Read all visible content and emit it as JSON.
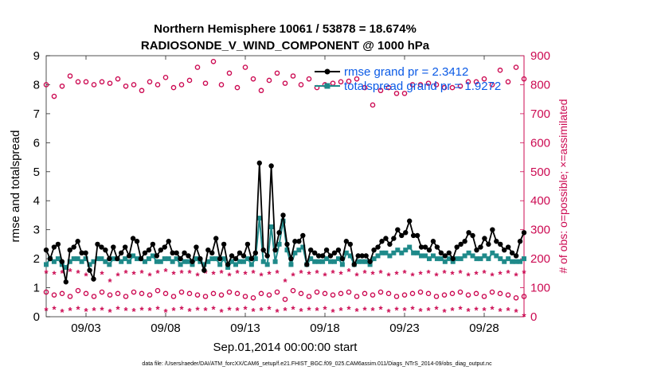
{
  "chart_data": {
    "type": "line",
    "title_line1": "Northern Hemisphere 10061 / 53878 = 18.674%",
    "title_line2": "RADIOSONDE_V_WIND_COMPONENT @ 1000 hPa",
    "xlabel": "Sep.01,2014 00:00:00 start",
    "ylabel": "rmse and totalspread",
    "y2label": "# of obs: o=possible; ×=assimilated",
    "footer": "data file: /Users/raeder/DAI/ATM_forcXX/CAM6_setup/f.e21.FHIST_BGC.f09_025.CAM6assim.011/Diags_NTrS_2014-09/obs_diag_output.nc",
    "xlim": [
      1.0,
      31.0
    ],
    "ylim": [
      0,
      9
    ],
    "y2lim": [
      0,
      900
    ],
    "yticks": [
      "0",
      "1",
      "2",
      "3",
      "4",
      "5",
      "6",
      "7",
      "8",
      "9"
    ],
    "y2ticks": [
      "0",
      "100",
      "200",
      "300",
      "400",
      "500",
      "600",
      "700",
      "800",
      "900"
    ],
    "xticks": [
      {
        "label": "09/03",
        "day": 3.5
      },
      {
        "label": "09/08",
        "day": 8.5
      },
      {
        "label": "09/13",
        "day": 13.5
      },
      {
        "label": "09/18",
        "day": 18.5
      },
      {
        "label": "09/23",
        "day": 23.5
      },
      {
        "label": "09/28",
        "day": 28.5
      }
    ],
    "legend": [
      {
        "label": "rmse grand pr = 2.3412",
        "color": "#000000"
      },
      {
        "label": "totalspread grand pr = 1.9272",
        "color": "#1f8a8a"
      }
    ],
    "colors": {
      "rmse": "#000000",
      "spread": "#1f8a8a",
      "obs": "#cc0a52"
    },
    "series": [
      {
        "name": "rmse",
        "values": [
          2.3,
          2.0,
          2.4,
          2.5,
          1.9,
          1.2,
          2.3,
          2.4,
          2.6,
          2.2,
          2.2,
          1.6,
          1.3,
          2.5,
          2.4,
          2.3,
          2.0,
          2.4,
          2.0,
          2.2,
          2.4,
          2.1,
          2.7,
          2.6,
          2.0,
          2.2,
          2.3,
          2.5,
          2.1,
          2.3,
          2.4,
          2.6,
          2.2,
          2.2,
          2.0,
          2.2,
          2.1,
          1.9,
          2.4,
          2.0,
          1.6,
          2.3,
          2.2,
          2.7,
          2.0,
          2.5,
          1.8,
          2.1,
          2.0,
          2.2,
          2.1,
          2.5,
          2.0,
          2.2,
          5.3,
          2.3,
          2.1,
          5.2,
          2.3,
          2.9,
          3.5,
          2.5,
          2.0,
          2.6,
          2.6,
          2.8,
          1.8,
          2.3,
          2.2,
          2.1,
          2.1,
          2.3,
          2.1,
          2.2,
          2.3,
          2.0,
          2.6,
          2.5,
          1.8,
          2.1,
          2.1,
          2.1,
          1.9,
          2.3,
          2.4,
          2.6,
          2.7,
          2.5,
          2.7,
          3.0,
          2.8,
          2.9,
          3.3,
          2.8,
          2.8,
          2.4,
          2.4,
          2.3,
          2.6,
          2.4,
          2.2,
          2.1,
          2.2,
          2.0,
          2.4,
          2.5,
          2.6,
          2.9,
          2.8,
          2.3,
          2.4,
          2.7,
          2.5,
          3.0,
          2.6,
          2.5,
          2.3,
          2.4,
          2.2,
          2.1,
          2.6,
          2.9
        ]
      },
      {
        "name": "totalspread",
        "values": [
          1.8,
          2.0,
          1.9,
          2.0,
          1.8,
          1.7,
          1.9,
          2.0,
          2.0,
          1.9,
          2.0,
          1.8,
          1.9,
          2.0,
          2.0,
          1.9,
          1.8,
          2.0,
          2.0,
          1.9,
          2.0,
          1.9,
          2.1,
          2.0,
          2.0,
          1.9,
          2.0,
          2.1,
          1.9,
          1.9,
          2.0,
          2.0,
          1.9,
          2.0,
          1.8,
          1.9,
          1.9,
          1.8,
          2.0,
          1.9,
          1.8,
          1.9,
          2.0,
          2.0,
          1.8,
          2.0,
          1.7,
          1.9,
          1.8,
          1.9,
          1.9,
          2.0,
          1.8,
          2.0,
          3.4,
          1.9,
          1.8,
          3.1,
          1.9,
          2.5,
          3.3,
          2.3,
          1.8,
          2.2,
          2.3,
          2.4,
          1.8,
          2.0,
          1.9,
          1.9,
          1.9,
          2.0,
          1.9,
          1.9,
          2.0,
          1.8,
          2.2,
          2.1,
          1.8,
          1.9,
          1.9,
          1.9,
          1.8,
          2.0,
          2.1,
          2.2,
          2.2,
          2.1,
          2.2,
          2.3,
          2.2,
          2.3,
          2.4,
          2.2,
          2.2,
          2.1,
          2.1,
          2.0,
          2.1,
          2.0,
          2.0,
          1.9,
          2.0,
          1.9,
          2.0,
          2.0,
          2.1,
          2.2,
          2.1,
          2.0,
          2.0,
          2.1,
          2.0,
          2.2,
          2.1,
          2.0,
          1.9,
          2.0,
          1.9,
          1.9,
          1.9,
          2.0
        ]
      },
      {
        "name": "obs_possible_00z",
        "marker": "o",
        "x": [
          1,
          2,
          3,
          4,
          5,
          6,
          7,
          8,
          9,
          10,
          11,
          12,
          13,
          14,
          15,
          16,
          17,
          18,
          19,
          20,
          21,
          22,
          23,
          24,
          25,
          26,
          27,
          28,
          29,
          30,
          31
        ],
        "values": [
          800,
          795,
          810,
          800,
          805,
          795,
          780,
          800,
          790,
          815,
          805,
          800,
          790,
          820,
          815,
          805,
          800,
          790,
          805,
          812,
          790,
          780,
          770,
          800,
          805,
          790,
          795,
          810,
          800,
          810,
          820
        ]
      },
      {
        "name": "obs_possible_12z",
        "marker": "o",
        "x": [
          1.5,
          2.5,
          3.5,
          4.5,
          5.5,
          6.5,
          7.5,
          8.5,
          9.5,
          10.5,
          11.5,
          12.5,
          13.5,
          14.5,
          15.5,
          16.5,
          17.5,
          18.5,
          19.5,
          20.5,
          21.5,
          22.5,
          23.5,
          24.5,
          25.5,
          26.5,
          27.5,
          28.5,
          29.5,
          30.5
        ],
        "values": [
          760,
          830,
          810,
          810,
          820,
          800,
          810,
          825,
          800,
          860,
          880,
          840,
          860,
          780,
          840,
          830,
          820,
          800,
          810,
          820,
          730,
          790,
          770,
          800,
          800,
          790,
          810,
          820,
          850,
          860
        ]
      },
      {
        "name": "obs_possible_06z_18z",
        "marker": "o",
        "x": [
          1.0,
          1.5,
          2.0,
          2.5,
          3.0,
          3.5,
          4.0,
          4.5,
          5.0,
          5.5,
          6.0,
          6.5,
          7.0,
          7.5,
          8.0,
          8.5,
          9.0,
          9.5,
          10.0,
          10.5,
          11.0,
          11.5,
          12.0,
          12.5,
          13.0,
          13.5,
          14.0,
          14.5,
          15.0,
          15.5,
          16.0,
          16.5,
          17.0,
          17.5,
          18.0,
          18.5,
          19.0,
          19.5,
          20.0,
          20.5,
          21.0,
          21.5,
          22.0,
          22.5,
          23.0,
          23.5,
          24.0,
          24.5,
          25.0,
          25.5,
          26.0,
          26.5,
          27.0,
          27.5,
          28.0,
          28.5,
          29.0,
          29.5,
          30.0,
          30.5,
          31.0
        ],
        "values": [
          85,
          75,
          80,
          70,
          90,
          80,
          70,
          85,
          75,
          80,
          70,
          85,
          80,
          75,
          90,
          80,
          70,
          85,
          80,
          75,
          70,
          80,
          75,
          85,
          80,
          70,
          65,
          80,
          75,
          85,
          60,
          90,
          80,
          70,
          85,
          80,
          75,
          80,
          85,
          70,
          80,
          75,
          85,
          80,
          70,
          75,
          80,
          85,
          80,
          70,
          75,
          80,
          85,
          75,
          80,
          70,
          85,
          80,
          75,
          65,
          70
        ]
      },
      {
        "name": "obs_assimilated_high",
        "marker": "*",
        "x": [
          1.0,
          1.5,
          2.0,
          2.5,
          3.0,
          3.5,
          4.0,
          4.5,
          5.0,
          5.5,
          6.0,
          6.5,
          7.0,
          7.5,
          8.0,
          8.5,
          9.0,
          9.5,
          10.0,
          10.5,
          11.0,
          11.5,
          12.0,
          12.5,
          13.0,
          13.5,
          14.0,
          14.5,
          15.0,
          15.5,
          16.0,
          16.5,
          17.0,
          17.5,
          18.0,
          18.5,
          19.0,
          19.5,
          20.0,
          20.5,
          21.0,
          21.5,
          22.0,
          22.5,
          23.0,
          23.5,
          24.0,
          24.5,
          25.0,
          25.5,
          26.0,
          26.5,
          27.0,
          27.5,
          28.0,
          28.5,
          29.0,
          29.5,
          30.0,
          30.5,
          31.0
        ],
        "values": [
          150,
          145,
          150,
          155,
          150,
          140,
          125,
          145,
          120,
          140,
          150,
          145,
          150,
          140,
          150,
          155,
          145,
          150,
          150,
          140,
          150,
          145,
          150,
          140,
          150,
          145,
          150,
          140,
          145,
          150,
          120,
          140,
          150,
          145,
          150,
          140,
          150,
          145,
          155,
          140,
          150,
          145,
          150,
          140,
          145,
          150,
          140,
          145,
          150,
          140,
          150,
          145,
          150,
          140,
          145,
          150,
          140,
          145,
          150,
          140,
          150
        ]
      },
      {
        "name": "obs_assimilated_low",
        "marker": "*",
        "x": [
          1.0,
          1.5,
          2.0,
          2.5,
          3.0,
          3.5,
          4.0,
          4.5,
          5.0,
          5.5,
          6.0,
          6.5,
          7.0,
          7.5,
          8.0,
          8.5,
          9.0,
          9.5,
          10.0,
          10.5,
          11.0,
          11.5,
          12.0,
          12.5,
          13.0,
          13.5,
          14.0,
          14.5,
          15.0,
          15.5,
          16.0,
          16.5,
          17.0,
          17.5,
          18.0,
          18.5,
          19.0,
          19.5,
          20.0,
          20.5,
          21.0,
          21.5,
          22.0,
          22.5,
          23.0,
          23.5,
          24.0,
          24.5,
          25.0,
          25.5,
          26.0,
          26.5,
          27.0,
          27.5,
          28.0,
          28.5,
          29.0,
          29.5,
          30.0,
          30.5,
          31.0
        ],
        "values": [
          20,
          25,
          15,
          20,
          25,
          18,
          20,
          22,
          15,
          25,
          20,
          18,
          22,
          20,
          25,
          15,
          20,
          25,
          18,
          22,
          20,
          25,
          15,
          22,
          20,
          25,
          18,
          20,
          25,
          15,
          20,
          25,
          18,
          22,
          20,
          25,
          15,
          20,
          25,
          18,
          22,
          20,
          25,
          15,
          22,
          20,
          25,
          18,
          20,
          25,
          15,
          20,
          25,
          18,
          22,
          20,
          25,
          18,
          20,
          15,
          0
        ]
      }
    ]
  }
}
